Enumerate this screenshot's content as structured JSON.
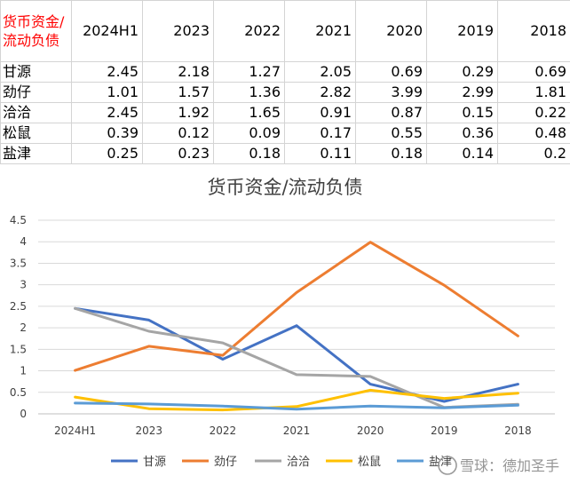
{
  "table": {
    "corner_label": "货币资金/流动负债",
    "columns": [
      "2024H1",
      "2023",
      "2022",
      "2021",
      "2020",
      "2019",
      "2018"
    ],
    "rows": [
      {
        "name": "甘源",
        "values": [
          "2.45",
          "2.18",
          "1.27",
          "2.05",
          "0.69",
          "0.29",
          "0.69"
        ]
      },
      {
        "name": "劲仔",
        "values": [
          "1.01",
          "1.57",
          "1.36",
          "2.82",
          "3.99",
          "2.99",
          "1.81"
        ]
      },
      {
        "name": "洽洽",
        "values": [
          "2.45",
          "1.92",
          "1.65",
          "0.91",
          "0.87",
          "0.15",
          "0.22"
        ]
      },
      {
        "name": "松鼠",
        "values": [
          "0.39",
          "0.12",
          "0.09",
          "0.17",
          "0.55",
          "0.36",
          "0.48"
        ]
      },
      {
        "name": "盐津",
        "values": [
          "0.25",
          "0.23",
          "0.18",
          "0.11",
          "0.18",
          "0.14",
          "0.2"
        ]
      }
    ]
  },
  "chart_data": {
    "type": "line",
    "title": "货币资金/流动负债",
    "categories": [
      "2024H1",
      "2023",
      "2022",
      "2021",
      "2020",
      "2019",
      "2018"
    ],
    "ylim": [
      0,
      4.5
    ],
    "yticks": [
      "0",
      "0.5",
      "1",
      "1.5",
      "2",
      "2.5",
      "3",
      "3.5",
      "4",
      "4.5"
    ],
    "grid": true,
    "legend_position": "bottom",
    "series": [
      {
        "name": "甘源",
        "color": "#4472c4",
        "values": [
          2.45,
          2.18,
          1.27,
          2.05,
          0.69,
          0.29,
          0.69
        ]
      },
      {
        "name": "劲仔",
        "color": "#ed7d31",
        "values": [
          1.01,
          1.57,
          1.36,
          2.82,
          3.99,
          2.99,
          1.81
        ]
      },
      {
        "name": "洽洽",
        "color": "#a5a5a5",
        "values": [
          2.45,
          1.92,
          1.65,
          0.91,
          0.87,
          0.15,
          0.22
        ]
      },
      {
        "name": "松鼠",
        "color": "#ffc000",
        "values": [
          0.39,
          0.12,
          0.09,
          0.17,
          0.55,
          0.36,
          0.48
        ]
      },
      {
        "name": "盐津",
        "color": "#5b9bd5",
        "values": [
          0.25,
          0.23,
          0.18,
          0.11,
          0.18,
          0.14,
          0.2
        ]
      }
    ]
  },
  "watermark": "雪球：德加圣手"
}
